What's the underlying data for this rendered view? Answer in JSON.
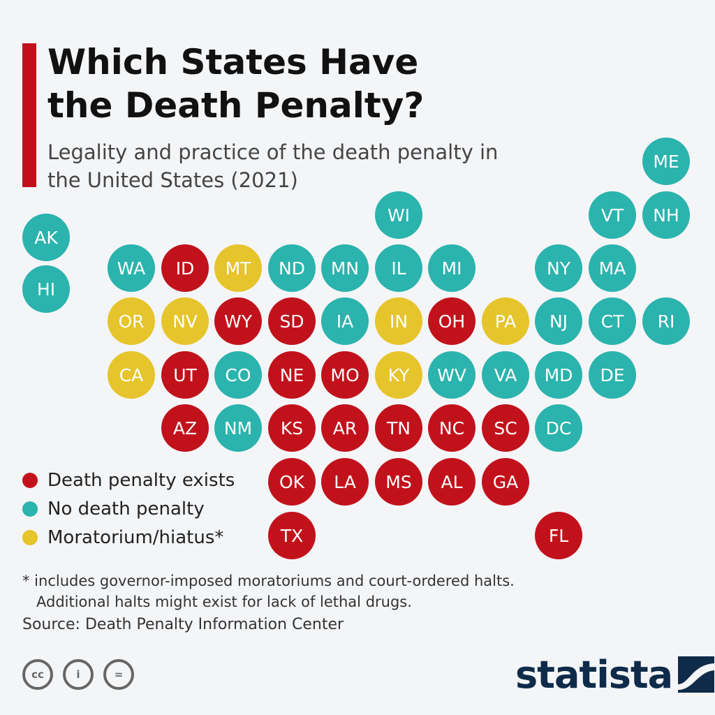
{
  "title": "Which States Have the Death Penalty?",
  "subtitle": "Legality and practice of the death penalty in the United States (2021)",
  "colors": {
    "red": "#c1121c",
    "teal": "#2bb3ad",
    "yellow": "#e6c42b",
    "accent": "#c30f1b"
  },
  "states": {
    "ME": "ME",
    "WI": "WI",
    "VT": "VT",
    "NH": "NH",
    "AK": "AK",
    "HI": "HI",
    "WA": "WA",
    "ID": "ID",
    "MT": "MT",
    "ND": "ND",
    "MN": "MN",
    "IL": "IL",
    "MI": "MI",
    "NY": "NY",
    "MA": "MA",
    "OR": "OR",
    "NV": "NV",
    "WY": "WY",
    "SD": "SD",
    "IA": "IA",
    "IN": "IN",
    "OH": "OH",
    "PA": "PA",
    "NJ": "NJ",
    "CT": "CT",
    "RI": "RI",
    "CA": "CA",
    "UT": "UT",
    "CO": "CO",
    "NE": "NE",
    "MO": "MO",
    "KY": "KY",
    "WV": "WV",
    "VA": "VA",
    "MD": "MD",
    "DE": "DE",
    "AZ": "AZ",
    "NM": "NM",
    "KS": "KS",
    "AR": "AR",
    "TN": "TN",
    "NC": "NC",
    "SC": "SC",
    "DC": "DC",
    "OK": "OK",
    "LA": "LA",
    "MS": "MS",
    "AL": "AL",
    "GA": "GA",
    "TX": "TX",
    "FL": "FL"
  },
  "legend": {
    "exists": "Death penalty exists",
    "none": "No death penalty",
    "moratorium": "Moratorium/hiatus*"
  },
  "footnote": {
    "line1": "* includes governor-imposed moratoriums and court-ordered halts.",
    "line2": "Additional halts might exist for lack of lethal drugs."
  },
  "source": "Source: Death Penalty Information Center",
  "logo": "statista",
  "cc": {
    "cc": "cc",
    "by": "i",
    "nd": "="
  }
}
